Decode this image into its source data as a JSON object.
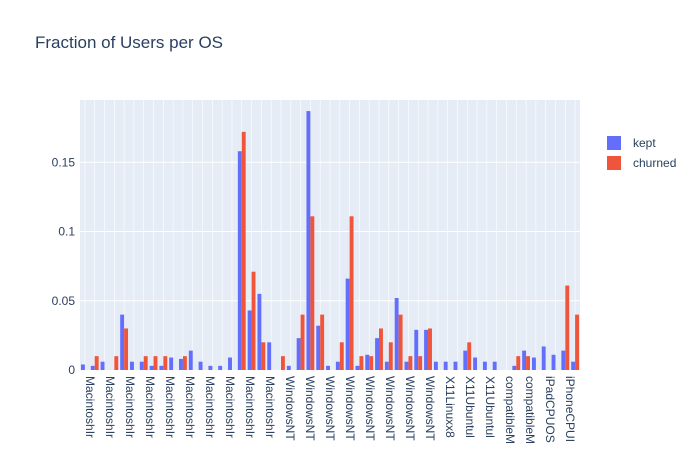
{
  "chart_data": {
    "type": "bar",
    "title": "Fraction of Users per OS",
    "xlabel": "",
    "ylabel": "",
    "ylim": [
      0,
      0.195
    ],
    "yticks": [
      0,
      0.05,
      0.1,
      0.15
    ],
    "ytick_labels": [
      "0",
      "0.05",
      "0.1",
      "0.15"
    ],
    "grid": true,
    "legend_position": "top-right",
    "categories": [
      "MacintoshIr",
      "MacintoshIr",
      "MacintoshIr",
      "MacintoshIr",
      "MacintoshIr",
      "MacintoshIr",
      "MacintoshIr",
      "MacintoshIr",
      "MacintoshIr",
      "MacintoshIr",
      "MacintoshIr",
      "MacintoshIr",
      "MacintoshIr",
      "MacintoshIr",
      "MacintoshIr",
      "MacintoshIr",
      "WindowsNT",
      "WindowsNT",
      "WindowsNT",
      "WindowsNT",
      "WindowsNT",
      "WindowsNT",
      "WindowsNT",
      "WindowsNT",
      "WindowsNT",
      "WindowsNT",
      "WindowsNT",
      "WindowsNT",
      "WindowsNT",
      "X11Linuxx8",
      "X11Linuxx8",
      "X11Ubuntul",
      "X11Ubuntul",
      "X11Ubuntul",
      "compatibleM",
      "compatibleM",
      "compatibleM",
      "compatibleM",
      "iPadCPUOS",
      "iPadCPUOS",
      "iPhoneCPUI",
      "iPhoneCPUI"
    ],
    "tick_labels": [
      "MacintoshIr",
      "MacintoshIr",
      "MacintoshIr",
      "MacintoshIr",
      "MacintoshIr",
      "MacintoshIr",
      "MacintoshIr",
      "MacintoshIr",
      "MacintoshIr",
      "MacintoshIr",
      "WindowsNT",
      "WindowsNT",
      "WindowsNT",
      "WindowsNT",
      "WindowsNT",
      "WindowsNT",
      "WindowsNT",
      "WindowsNT",
      "X11Linuxx8",
      "X11Ubuntul",
      "X11Ubuntul",
      "compatibleM",
      "compatibleM",
      "iPadCPUOS",
      "iPhoneCPUI"
    ],
    "series": [
      {
        "name": "kept",
        "color": "#636efa",
        "values": [
          0.004,
          0.003,
          0.006,
          0.0,
          0.04,
          0.006,
          0.006,
          0.003,
          0.003,
          0.009,
          0.008,
          0.014,
          0.006,
          0.003,
          0.003,
          0.009,
          0.158,
          0.043,
          0.055,
          0.02,
          0.0,
          0.003,
          0.023,
          0.187,
          0.032,
          0.003,
          0.006,
          0.066,
          0.003,
          0.011,
          0.023,
          0.006,
          0.052,
          0.006,
          0.029,
          0.029,
          0.006,
          0.006,
          0.006,
          0.014,
          0.009,
          0.006
        ]
      },
      {
        "name": "churned",
        "color": "#ef553b",
        "values": [
          0.0,
          0.01,
          0.0,
          0.01,
          0.03,
          0.0,
          0.01,
          0.01,
          0.01,
          0.0,
          0.01,
          0.0,
          0.0,
          0.0,
          0.0,
          0.0,
          0.172,
          0.071,
          0.02,
          0.0,
          0.01,
          0.0,
          0.04,
          0.111,
          0.04,
          0.0,
          0.02,
          0.111,
          0.01,
          0.01,
          0.03,
          0.02,
          0.04,
          0.01,
          0.01,
          0.03,
          0.0,
          0.0,
          0.0,
          0.02,
          0.0,
          0.0
        ]
      }
    ],
    "extra_bars": [
      {
        "series": "kept",
        "values": [
          0.006,
          0.0,
          0.003,
          0.014,
          0.009,
          0.017,
          0.011,
          0.014,
          0.006
        ]
      },
      {
        "series": "churned",
        "values": [
          0.0,
          0.0,
          0.01,
          0.01,
          0.0,
          0.0,
          0.0,
          0.061,
          0.04
        ]
      }
    ]
  }
}
